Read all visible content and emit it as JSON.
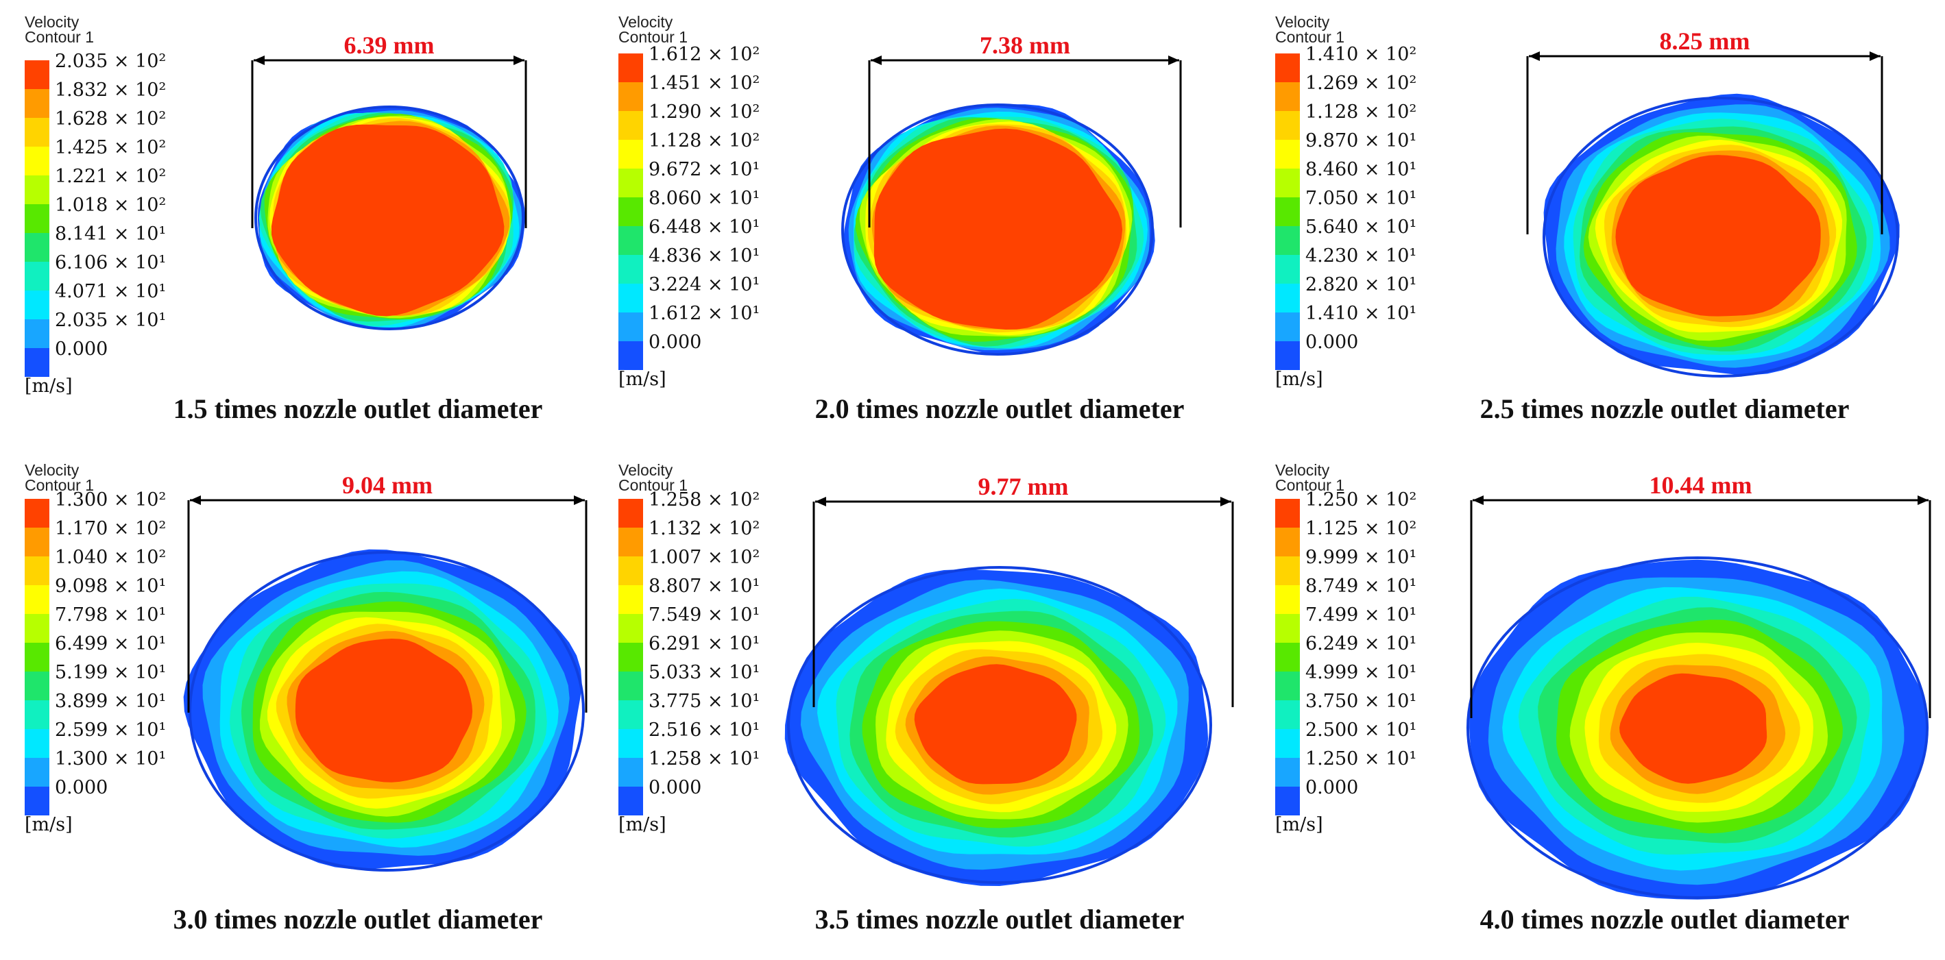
{
  "figure": {
    "legend_title_line1": "Velocity",
    "legend_title_line2": "Contour 1",
    "unit": "[m/s]",
    "colors": [
      "#ff4200",
      "#ff9b00",
      "#ffd400",
      "#ffff00",
      "#b7ff00",
      "#58e800",
      "#1fe56b",
      "#10f0c0",
      "#00e8ff",
      "#18a6ff",
      "#1450ff"
    ],
    "panels": [
      {
        "caption": "1.5 times nozzle outlet diameter",
        "dimension": "6.39 mm",
        "legend": [
          "2.035 × 10²",
          "1.832 × 10²",
          "1.628 × 10²",
          "1.425 × 10²",
          "1.221 × 10²",
          "1.018 × 10²",
          "8.141 × 10¹",
          "6.106 × 10¹",
          "4.071 × 10¹",
          "2.035 × 10¹",
          "0.000"
        ]
      },
      {
        "caption": "2.0 times nozzle outlet diameter",
        "dimension": "7.38 mm",
        "legend": [
          "1.612 × 10²",
          "1.451 × 10²",
          "1.290 × 10²",
          "1.128 × 10²",
          "9.672 × 10¹",
          "8.060 × 10¹",
          "6.448 × 10¹",
          "4.836 × 10¹",
          "3.224 × 10¹",
          "1.612 × 10¹",
          "0.000"
        ]
      },
      {
        "caption": "2.5 times nozzle outlet diameter",
        "dimension": "8.25 mm",
        "legend": [
          "1.410 × 10²",
          "1.269 × 10²",
          "1.128 × 10²",
          "9.870 × 10¹",
          "8.460 × 10¹",
          "7.050 × 10¹",
          "5.640 × 10¹",
          "4.230 × 10¹",
          "2.820 × 10¹",
          "1.410 × 10¹",
          "0.000"
        ]
      },
      {
        "caption": "3.0 times nozzle outlet diameter",
        "dimension": "9.04 mm",
        "legend": [
          "1.300 × 10²",
          "1.170 × 10²",
          "1.040 × 10²",
          "9.098 × 10¹",
          "7.798 × 10¹",
          "6.499 × 10¹",
          "5.199 × 10¹",
          "3.899 × 10¹",
          "2.599 × 10¹",
          "1.300 × 10¹",
          "0.000"
        ]
      },
      {
        "caption": "3.5 times nozzle outlet diameter",
        "dimension": "9.77 mm",
        "legend": [
          "1.258 × 10²",
          "1.132 × 10²",
          "1.007 × 10²",
          "8.807 × 10¹",
          "7.549 × 10¹",
          "6.291 × 10¹",
          "5.033 × 10¹",
          "3.775 × 10¹",
          "2.516 × 10¹",
          "1.258 × 10¹",
          "0.000"
        ]
      },
      {
        "caption": "4.0 times nozzle outlet diameter",
        "dimension": "10.44 mm",
        "legend": [
          "1.250 × 10²",
          "1.125 × 10²",
          "9.999 × 10¹",
          "8.749 × 10¹",
          "7.499 × 10¹",
          "6.249 × 10¹",
          "4.999 × 10¹",
          "3.750 × 10¹",
          "2.500 × 10¹",
          "1.250 × 10¹",
          "0.000"
        ]
      }
    ]
  }
}
